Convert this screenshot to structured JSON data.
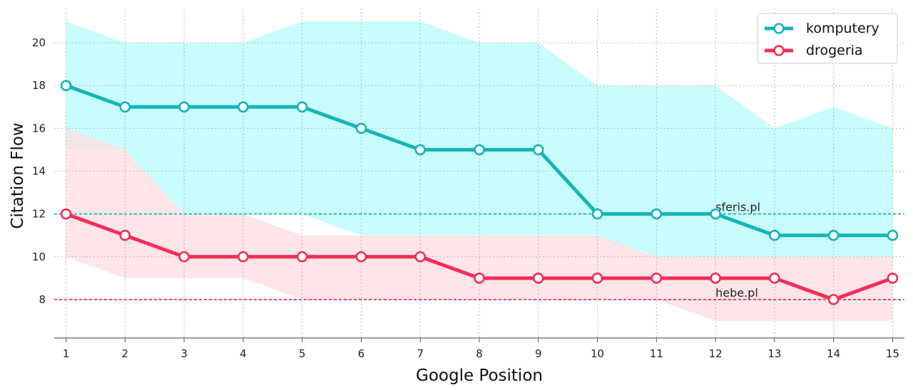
{
  "chart_data": {
    "type": "line",
    "xlabel": "Google Position",
    "ylabel": "Citation Flow",
    "x": [
      1,
      2,
      3,
      4,
      5,
      6,
      7,
      8,
      9,
      10,
      11,
      12,
      13,
      14,
      15
    ],
    "xlim": [
      0.8,
      15.2
    ],
    "ylim": [
      6.2,
      21.6
    ],
    "yticks": [
      8,
      10,
      12,
      14,
      16,
      18,
      20
    ],
    "grid": true,
    "legend_position": "top-right",
    "series": [
      {
        "name": "komputery",
        "color": "#13b5b8",
        "band_color": "#bffbfc",
        "values": [
          18,
          17,
          17,
          17,
          17,
          16,
          15,
          15,
          15,
          12,
          12,
          12,
          11,
          11,
          11
        ],
        "upper": [
          21,
          20,
          20,
          20,
          21,
          21,
          21,
          20,
          20,
          18,
          18,
          18,
          16,
          17,
          16
        ],
        "lower": [
          15,
          15,
          12,
          12,
          12,
          11,
          11,
          11,
          11,
          11,
          10,
          10,
          10,
          10,
          10
        ]
      },
      {
        "name": "drogeria",
        "color": "#f52d57",
        "band_color": "#fde0e4",
        "values": [
          12,
          11,
          10,
          10,
          10,
          10,
          10,
          9,
          9,
          9,
          9,
          9,
          9,
          8,
          9
        ],
        "upper": [
          16,
          15,
          12,
          12,
          11,
          11,
          11,
          11,
          11,
          11,
          10,
          10,
          10,
          10,
          10
        ],
        "lower": [
          10,
          9,
          9,
          9,
          8,
          8,
          8,
          8,
          8,
          8,
          8,
          7,
          7,
          7,
          7
        ]
      }
    ],
    "reference_lines": [
      {
        "value": 12,
        "label": "sferis.pl",
        "color": "#13b5b8"
      },
      {
        "value": 8,
        "label": "hebe.pl",
        "color": "#f52d57"
      }
    ]
  }
}
